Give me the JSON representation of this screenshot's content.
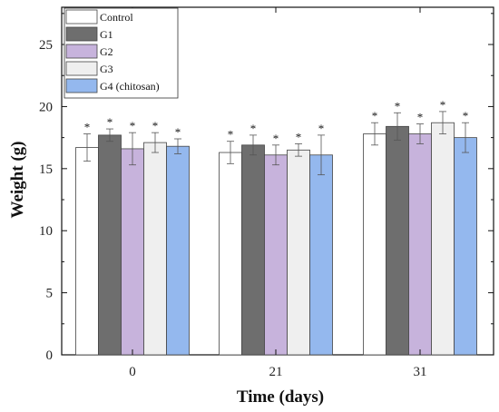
{
  "chart_data": {
    "type": "bar",
    "title": "",
    "xlabel": "Time (days)",
    "ylabel": "Weight (g)",
    "categories": [
      "0",
      "21",
      "31"
    ],
    "ylim": [
      0,
      28
    ],
    "yticks": [
      "0",
      "5",
      "10",
      "15",
      "20",
      "25"
    ],
    "series": [
      {
        "name": "Control",
        "color": "#ffffff",
        "values": [
          16.7,
          16.3,
          17.8
        ],
        "errors": [
          1.1,
          0.9,
          0.9
        ]
      },
      {
        "name": "G1",
        "color": "#6e6e6e",
        "values": [
          17.7,
          16.9,
          18.4
        ],
        "errors": [
          0.5,
          0.8,
          1.1
        ]
      },
      {
        "name": "G2",
        "color": "#c7b3dc",
        "values": [
          16.6,
          16.1,
          17.8
        ],
        "errors": [
          1.3,
          0.8,
          0.8
        ]
      },
      {
        "name": "G3",
        "color": "#efefef",
        "values": [
          17.1,
          16.5,
          18.7
        ],
        "errors": [
          0.8,
          0.5,
          0.9
        ]
      },
      {
        "name": "G4 (chitosan)",
        "color": "#94b8ee",
        "values": [
          16.8,
          16.1,
          17.5
        ],
        "errors": [
          0.6,
          1.6,
          1.2
        ]
      }
    ],
    "annotations": {
      "significance_marker": "*"
    },
    "legend_position": "top-left",
    "grid": false
  }
}
